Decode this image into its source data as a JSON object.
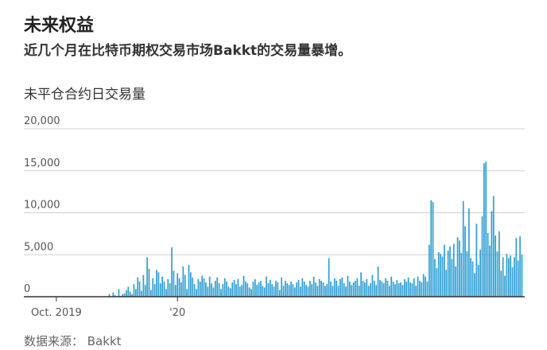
{
  "header": {
    "title": "未来权益",
    "subtitle": "近几个月在比特币期权交易市场Bakkt的交易量暴增。",
    "chart_label": "未平仓合约日交易量"
  },
  "footer": {
    "source": "数据来源： Bakkt"
  },
  "colors": {
    "bar": "#2f9fd4",
    "grid": "#cfcfcf",
    "axis": "#333333"
  },
  "chart_data": {
    "type": "bar",
    "title": "未平仓合约日交易量",
    "xlabel": "",
    "ylabel": "",
    "ylim": [
      0,
      20000
    ],
    "y_ticks": [
      0,
      5000,
      10000,
      15000,
      20000
    ],
    "y_tick_labels": [
      "0",
      "5,000",
      "10,000",
      "15,000",
      "20,000"
    ],
    "x_ticks": [
      {
        "label": "Oct. 2019",
        "index": 0
      },
      {
        "label": "'20",
        "index": 64
      }
    ],
    "values": [
      0,
      0,
      0,
      0,
      0,
      0,
      0,
      0,
      0,
      0,
      0,
      0,
      0,
      0,
      0,
      0,
      0,
      0,
      0,
      0,
      0,
      0,
      0,
      0,
      0,
      0,
      0,
      0,
      300,
      0,
      500,
      200,
      0,
      900,
      100,
      300,
      400,
      800,
      1200,
      600,
      300,
      1500,
      900,
      2300,
      1800,
      700,
      2600,
      1400,
      4700,
      3300,
      800,
      2200,
      1500,
      3200,
      2900,
      1600,
      2400,
      1800,
      900,
      2100,
      1600,
      5900,
      3100,
      1400,
      2800,
      2200,
      1700,
      3600,
      2600,
      900,
      3800,
      2900,
      2300,
      1500,
      900,
      2100,
      1800,
      2500,
      2200,
      1700,
      1200,
      2400,
      1600,
      1100,
      1900,
      2300,
      1600,
      900,
      1500,
      2200,
      1800,
      1200,
      1000,
      1700,
      2000,
      1500,
      2100,
      1200,
      1400,
      2500,
      1800,
      1600,
      1100,
      900,
      1800,
      2100,
      1400,
      1700,
      1900,
      1300,
      1100,
      2400,
      1600,
      2000,
      1500,
      1200,
      1900,
      1700,
      800,
      2300,
      1300,
      1900,
      1600,
      1400,
      1800,
      1500,
      1100,
      1700,
      2000,
      1200,
      2200,
      1800,
      1400,
      1200,
      1900,
      1500,
      2400,
      1700,
      1300,
      2100,
      1900,
      1700,
      1300,
      1500,
      4600,
      1800,
      1300,
      2200,
      1900,
      1300,
      2100,
      2300,
      1600,
      1200,
      2500,
      1800,
      1400,
      1700,
      1900,
      2200,
      1300,
      2900,
      1900,
      1700,
      2100,
      1300,
      1600,
      2600,
      1900,
      1400,
      3600,
      2000,
      1800,
      1600,
      2200,
      1900,
      1300,
      2400,
      1800,
      1500,
      2000,
      1600,
      1700,
      1400,
      2100,
      1800,
      2300,
      1700,
      1600,
      2200,
      1300,
      2400,
      1900,
      1700,
      2700,
      2400,
      1800,
      6200,
      11500,
      11300,
      4500,
      3400,
      5300,
      5100,
      4800,
      6200,
      3200,
      5500,
      6000,
      4500,
      6300,
      3600,
      7100,
      6700,
      5200,
      11400,
      8400,
      5400,
      10500,
      4600,
      4200,
      2800,
      8700,
      3800,
      5600,
      9600,
      15900,
      16100,
      7600,
      6100,
      10200,
      12000,
      7300,
      5400,
      7800,
      3100,
      4700,
      2500,
      5100,
      4600,
      4900,
      3500,
      4700,
      7000,
      4300,
      7200,
      5000
    ]
  }
}
